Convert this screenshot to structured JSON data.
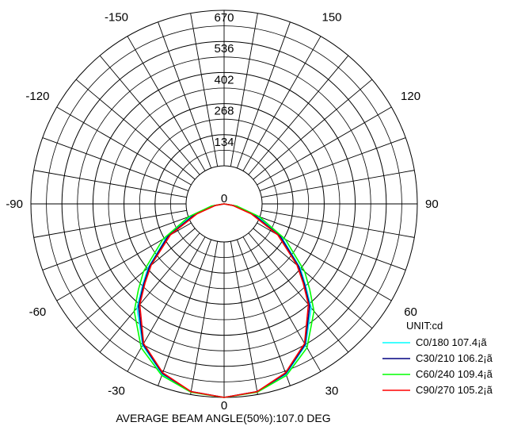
{
  "chart_data": {
    "type": "polar",
    "angle_labels": [
      {
        "deg": 180,
        "text": ""
      },
      {
        "deg": 150,
        "text": "150"
      },
      {
        "deg": 120,
        "text": "120"
      },
      {
        "deg": 90,
        "text": "90"
      },
      {
        "deg": 60,
        "text": "60"
      },
      {
        "deg": 30,
        "text": "30"
      },
      {
        "deg": 0,
        "text": "0"
      },
      {
        "deg": -30,
        "text": "-30"
      },
      {
        "deg": -60,
        "text": "-60"
      },
      {
        "deg": -90,
        "text": "-90"
      },
      {
        "deg": -120,
        "text": "-120"
      },
      {
        "deg": -150,
        "text": "-150"
      }
    ],
    "radial_ticks": [
      0,
      134,
      268,
      402,
      536,
      670
    ],
    "rmax": 670,
    "unit_label": "UNIT:cd",
    "footer": "AVERAGE BEAM ANGLE(50%):107.0 DEG",
    "series": [
      {
        "name": "C0/180 107.4¡ã",
        "color": "#00ffff",
        "angles": [
          -90,
          -80,
          -70,
          -60,
          -50,
          -45,
          -40,
          -30,
          -20,
          -10,
          0,
          10,
          20,
          30,
          40,
          45,
          50,
          60,
          70,
          80,
          90
        ],
        "values": [
          0,
          40,
          120,
          230,
          345,
          400,
          470,
          565,
          628,
          660,
          670,
          660,
          628,
          565,
          470,
          400,
          345,
          230,
          120,
          40,
          0
        ]
      },
      {
        "name": "C30/210 106.2¡ã",
        "color": "#000080",
        "angles": [
          -90,
          -80,
          -70,
          -60,
          -50,
          -45,
          -40,
          -30,
          -20,
          -10,
          0,
          10,
          20,
          30,
          40,
          45,
          50,
          60,
          70,
          80,
          90
        ],
        "values": [
          0,
          35,
          110,
          225,
          338,
          395,
          462,
          562,
          625,
          660,
          670,
          660,
          625,
          562,
          462,
          395,
          338,
          225,
          110,
          35,
          0
        ]
      },
      {
        "name": "C60/240 109.4¡ã",
        "color": "#00ff00",
        "angles": [
          -90,
          -80,
          -70,
          -60,
          -50,
          -45,
          -40,
          -30,
          -20,
          -10,
          0,
          10,
          20,
          30,
          40,
          45,
          50,
          60,
          70,
          80,
          90
        ],
        "values": [
          0,
          45,
          130,
          245,
          365,
          420,
          485,
          575,
          632,
          662,
          670,
          662,
          632,
          575,
          485,
          420,
          365,
          245,
          130,
          45,
          0
        ]
      },
      {
        "name": "C90/270 105.2¡ã",
        "color": "#ff0000",
        "angles": [
          -90,
          -80,
          -70,
          -60,
          -50,
          -45,
          -40,
          -30,
          -20,
          -10,
          0,
          10,
          20,
          30,
          40,
          45,
          50,
          60,
          70,
          80,
          90
        ],
        "values": [
          0,
          30,
          100,
          215,
          330,
          388,
          455,
          558,
          622,
          660,
          670,
          660,
          622,
          558,
          455,
          388,
          330,
          215,
          100,
          30,
          0
        ]
      }
    ]
  }
}
